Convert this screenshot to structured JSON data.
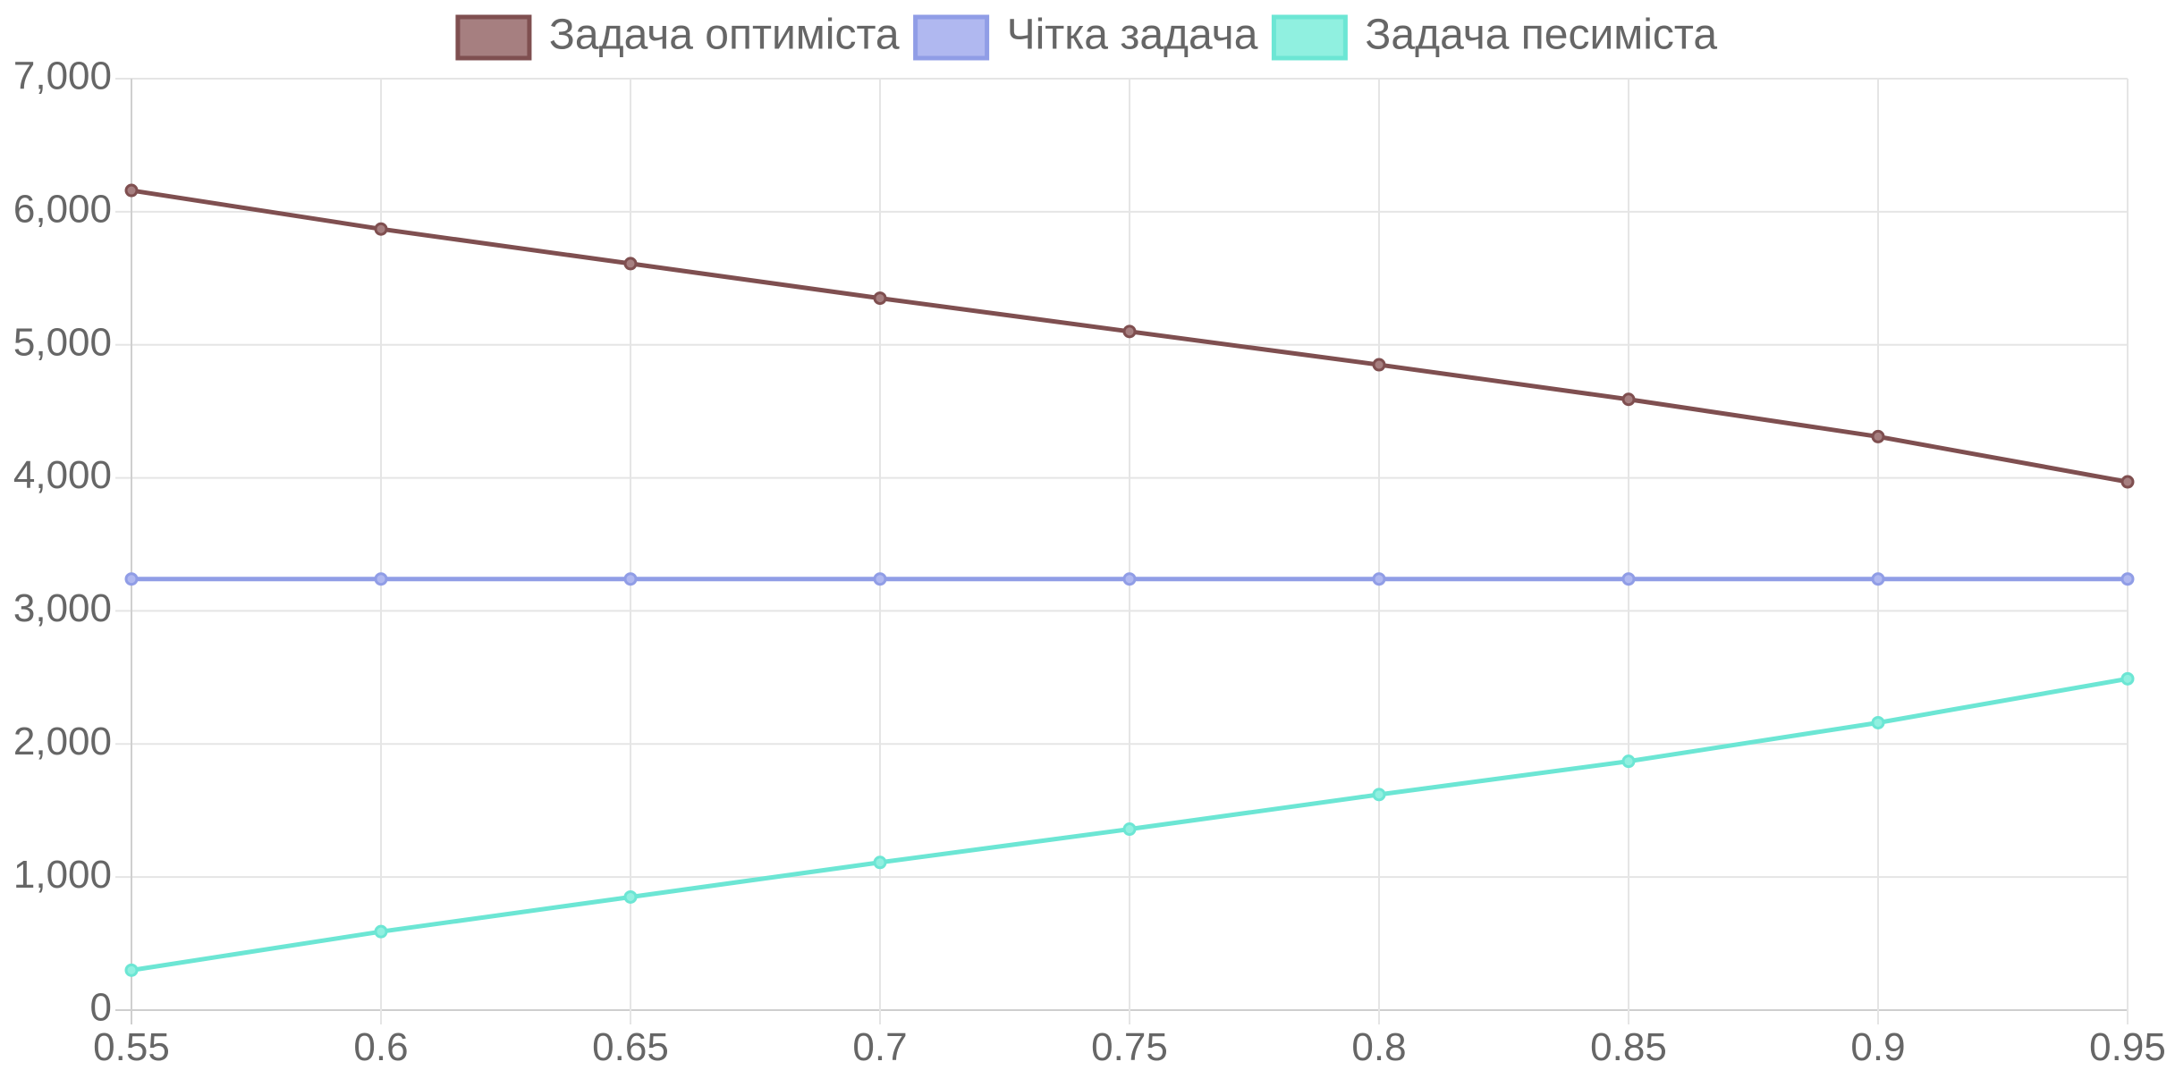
{
  "chart_data": {
    "type": "line",
    "x": [
      0.55,
      0.6,
      0.65,
      0.7,
      0.75,
      0.8,
      0.85,
      0.9,
      0.95
    ],
    "x_tick_labels": [
      "0.55",
      "0.6",
      "0.65",
      "0.7",
      "0.75",
      "0.8",
      "0.85",
      "0.9",
      "0.95"
    ],
    "y_ticks": [
      0,
      1000,
      2000,
      3000,
      4000,
      5000,
      6000,
      7000
    ],
    "y_tick_labels": [
      "0",
      "1,000",
      "2,000",
      "3,000",
      "4,000",
      "5,000",
      "6,000",
      "7,000"
    ],
    "ylim": [
      0,
      7000
    ],
    "xlim": [
      0.55,
      0.95
    ],
    "grid": true,
    "legend_position": "top-center",
    "title": "",
    "xlabel": "",
    "ylabel": "",
    "series": [
      {
        "name": "Задача оптиміста",
        "color": "#7f4f50",
        "fill": "#a67f80",
        "values": [
          6160,
          5870,
          5610,
          5350,
          5100,
          4850,
          4590,
          4310,
          3970
        ]
      },
      {
        "name": "Чітка задача",
        "color": "#909de6",
        "fill": "#b0b8f0",
        "values": [
          3240,
          3240,
          3240,
          3240,
          3240,
          3240,
          3240,
          3240,
          3240
        ]
      },
      {
        "name": "Задача песиміста",
        "color": "#6ce6d4",
        "fill": "#90f0e0",
        "values": [
          300,
          590,
          850,
          1110,
          1360,
          1620,
          1870,
          2160,
          2490
        ]
      }
    ]
  }
}
